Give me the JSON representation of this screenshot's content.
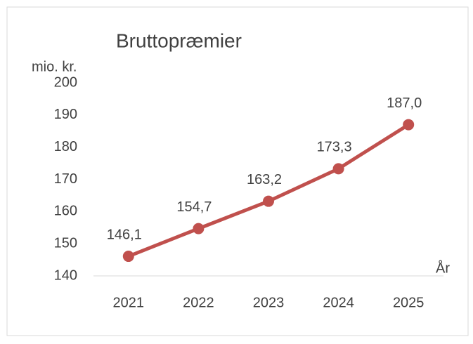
{
  "chart_data": {
    "type": "line",
    "title": "Bruttopræmier",
    "y_label": "mio. kr.",
    "x_label": "År",
    "categories": [
      "2021",
      "2022",
      "2023",
      "2024",
      "2025"
    ],
    "series": [
      {
        "name": "Bruttopræmier",
        "color": "#c0504d",
        "values": [
          146.1,
          154.7,
          163.2,
          173.3,
          187.0
        ],
        "value_labels": [
          "146,1",
          "154,7",
          "163,2",
          "173,3",
          "187,0"
        ]
      }
    ],
    "ylim": [
      140,
      200
    ],
    "yticks": [
      140,
      150,
      160,
      170,
      180,
      190,
      200
    ],
    "grid": false
  }
}
